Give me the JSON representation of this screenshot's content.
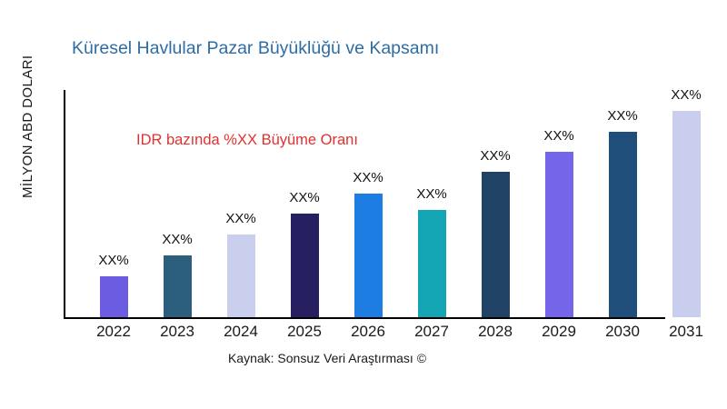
{
  "page": {
    "background": "#ffffff"
  },
  "title": {
    "text": "Küresel Havlular Pazar Büyüklüğü ve Kapsamı",
    "color": "#2e6da4"
  },
  "y_axis_label": "MİLYON ABD DOLARI",
  "annotation": {
    "text": "IDR bazında %XX Büyüme Oranı",
    "color": "#e23030"
  },
  "source": {
    "text": "Kaynak: Sonsuz Veri Araştırması ©"
  },
  "axis": {
    "color": "#000000"
  },
  "chart_data": {
    "type": "bar",
    "title": "Küresel Havlular Pazar Büyüklüğü ve Kapsamı",
    "xlabel": "",
    "ylabel": "MİLYON ABD DOLARI",
    "categories": [
      "2022",
      "2023",
      "2024",
      "2025",
      "2026",
      "2027",
      "2028",
      "2029",
      "2030",
      "2031"
    ],
    "values": [
      20,
      30,
      40,
      50,
      60,
      52,
      70.5,
      80,
      90,
      100
    ],
    "value_note": "no numeric y-axis ticks shown; values are relative bar heights (% of tallest bar)",
    "bar_labels": [
      "XX%",
      "XX%",
      "XX%",
      "XX%",
      "XX%",
      "XX%",
      "XX%",
      "XX%",
      "XX%",
      "XX%"
    ],
    "bar_colors": [
      "#6c5ce2",
      "#2c5f7e",
      "#cbcfee",
      "#262060",
      "#1d7de2",
      "#14a5b5",
      "#1f4265",
      "#7565e9",
      "#1f4e7a",
      "#c9cdee"
    ],
    "annotation": "IDR bazında %XX Büyüme Oranı",
    "source": "Kaynak: Sonsuz Veri Araştırması ©",
    "grid": false,
    "legend": false,
    "ylim": [
      0,
      110
    ]
  }
}
